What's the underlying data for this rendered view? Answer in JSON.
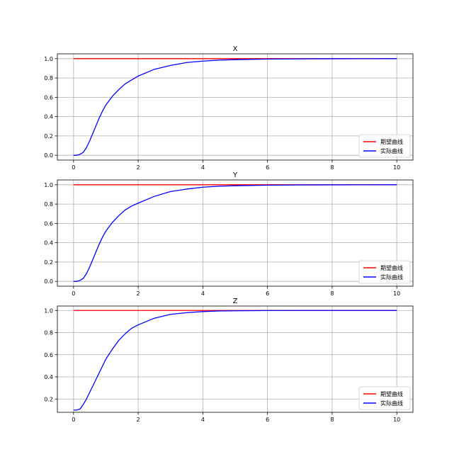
{
  "chart_data": [
    {
      "type": "line",
      "title": "X",
      "xlim": [
        -0.5,
        10.5
      ],
      "ylim": [
        -0.05,
        1.05
      ],
      "xticks": [
        "0",
        "2",
        "4",
        "6",
        "8",
        "10"
      ],
      "xtick_values": [
        0,
        2,
        4,
        6,
        8,
        10
      ],
      "yticks": [
        "0.0",
        "0.2",
        "0.4",
        "0.6",
        "0.8",
        "1.0"
      ],
      "ytick_values": [
        0.0,
        0.2,
        0.4,
        0.6,
        0.8,
        1.0
      ],
      "grid": true,
      "legend": "lower-right",
      "series": [
        {
          "name": "期望曲线",
          "color": "#ff0000",
          "x": [
            0,
            10
          ],
          "y": [
            1.0,
            1.0
          ]
        },
        {
          "name": "实际曲线",
          "color": "#0000ff",
          "x": [
            0,
            0.1,
            0.2,
            0.3,
            0.4,
            0.5,
            0.6,
            0.7,
            0.8,
            0.9,
            1.0,
            1.2,
            1.4,
            1.6,
            1.8,
            2.0,
            2.5,
            3.0,
            3.5,
            4.0,
            4.5,
            5.0,
            6.0,
            7.0,
            8.0,
            10.0
          ],
          "y": [
            0.0,
            0.0,
            0.01,
            0.03,
            0.08,
            0.15,
            0.23,
            0.31,
            0.39,
            0.46,
            0.52,
            0.61,
            0.68,
            0.74,
            0.78,
            0.82,
            0.89,
            0.93,
            0.96,
            0.975,
            0.985,
            0.99,
            0.996,
            0.998,
            0.999,
            1.0
          ]
        }
      ]
    },
    {
      "type": "line",
      "title": "Y",
      "xlim": [
        -0.5,
        10.5
      ],
      "ylim": [
        -0.05,
        1.05
      ],
      "xticks": [
        "0",
        "2",
        "4",
        "6",
        "8",
        "10"
      ],
      "xtick_values": [
        0,
        2,
        4,
        6,
        8,
        10
      ],
      "yticks": [
        "0.0",
        "0.2",
        "0.4",
        "0.6",
        "0.8",
        "1.0"
      ],
      "ytick_values": [
        0.0,
        0.2,
        0.4,
        0.6,
        0.8,
        1.0
      ],
      "grid": true,
      "legend": "lower-right",
      "series": [
        {
          "name": "期望曲线",
          "color": "#ff0000",
          "x": [
            0,
            10
          ],
          "y": [
            1.0,
            1.0
          ]
        },
        {
          "name": "实际曲线",
          "color": "#0000ff",
          "x": [
            0,
            0.1,
            0.2,
            0.3,
            0.4,
            0.5,
            0.6,
            0.7,
            0.8,
            0.9,
            1.0,
            1.2,
            1.4,
            1.6,
            1.8,
            2.0,
            2.5,
            3.0,
            3.5,
            4.0,
            4.5,
            5.0,
            6.0,
            7.0,
            8.0,
            10.0
          ],
          "y": [
            0.0,
            0.0,
            0.01,
            0.03,
            0.08,
            0.15,
            0.23,
            0.31,
            0.39,
            0.46,
            0.52,
            0.61,
            0.68,
            0.74,
            0.78,
            0.81,
            0.88,
            0.93,
            0.955,
            0.975,
            0.985,
            0.99,
            0.996,
            0.998,
            0.999,
            1.0
          ]
        }
      ]
    },
    {
      "type": "line",
      "title": "Z",
      "xlim": [
        -0.5,
        10.5
      ],
      "ylim": [
        0.08,
        1.04
      ],
      "xticks": [
        "0",
        "2",
        "4",
        "6",
        "8",
        "10"
      ],
      "xtick_values": [
        0,
        2,
        4,
        6,
        8,
        10
      ],
      "yticks": [
        "0.2",
        "0.4",
        "0.6",
        "0.8",
        "1.0"
      ],
      "ytick_values": [
        0.2,
        0.4,
        0.6,
        0.8,
        1.0
      ],
      "grid": true,
      "legend": "lower-right",
      "series": [
        {
          "name": "期望曲线",
          "color": "#ff0000",
          "x": [
            0,
            10
          ],
          "y": [
            1.0,
            1.0
          ]
        },
        {
          "name": "实际曲线",
          "color": "#0000ff",
          "x": [
            0,
            0.1,
            0.2,
            0.3,
            0.4,
            0.5,
            0.6,
            0.7,
            0.8,
            0.9,
            1.0,
            1.2,
            1.4,
            1.6,
            1.8,
            2.0,
            2.5,
            3.0,
            3.5,
            4.0,
            4.5,
            5.0,
            6.0,
            7.0,
            8.0,
            10.0
          ],
          "y": [
            0.1,
            0.1,
            0.11,
            0.15,
            0.2,
            0.26,
            0.32,
            0.38,
            0.44,
            0.5,
            0.56,
            0.65,
            0.73,
            0.79,
            0.84,
            0.87,
            0.93,
            0.965,
            0.98,
            0.99,
            0.995,
            0.997,
            0.999,
            1.0,
            1.0,
            1.0
          ]
        }
      ]
    }
  ]
}
